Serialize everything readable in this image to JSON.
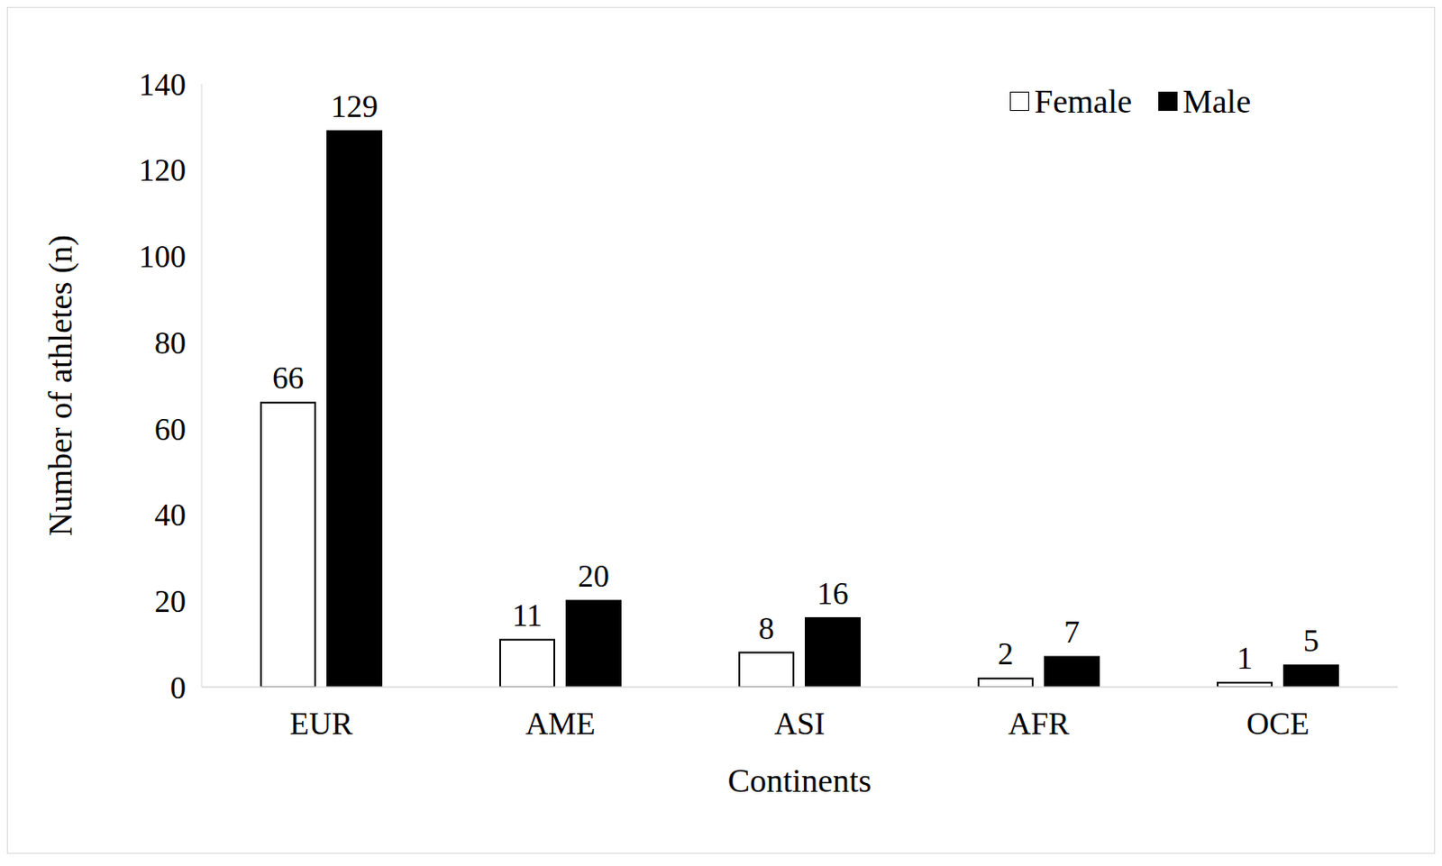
{
  "chart_data": {
    "type": "bar",
    "x_label": "Continents",
    "y_label": "Number of athletes (n)",
    "categories": [
      "EUR",
      "AME",
      "ASI",
      "AFR",
      "OCE"
    ],
    "series": [
      {
        "name": "Female",
        "color": "#ffffff",
        "values": [
          66,
          11,
          8,
          2,
          1
        ]
      },
      {
        "name": "Male",
        "color": "#000000",
        "values": [
          129,
          20,
          16,
          7,
          5
        ]
      }
    ],
    "ylim": [
      0,
      140
    ],
    "yticks": [
      0,
      20,
      40,
      60,
      80,
      100,
      120,
      140
    ],
    "legend": "top right",
    "data_labels": true,
    "grid": false
  }
}
